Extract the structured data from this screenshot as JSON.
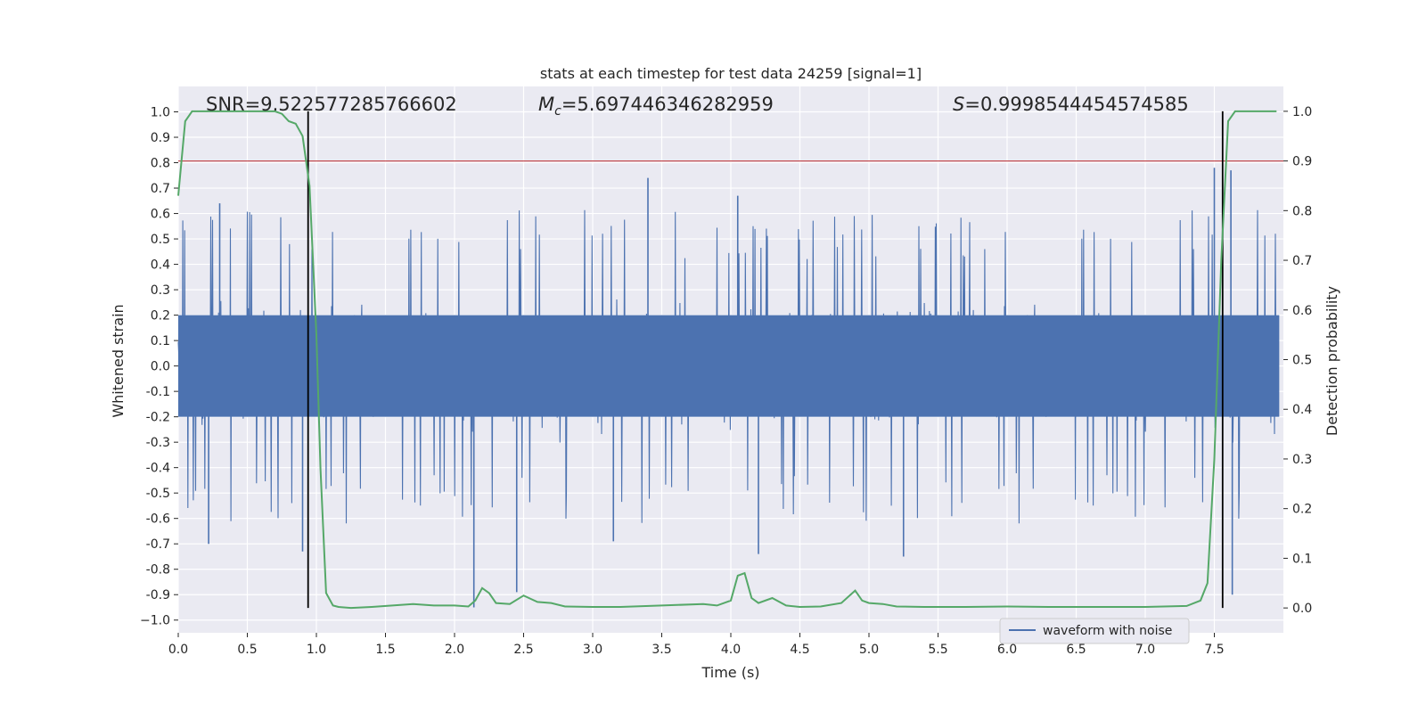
{
  "chart_data": {
    "type": "line",
    "title": "stats at each timestep for test data 24259 [signal=1]",
    "xlabel": "Time (s)",
    "ylabel": "Whitened strain",
    "y2label": "Detection probability",
    "xlim": [
      0.0,
      8.0
    ],
    "ylim": [
      -1.05,
      1.1
    ],
    "y2lim": [
      -0.05,
      1.05
    ],
    "x_ticks": [
      "0.0",
      "0.5",
      "1.0",
      "1.5",
      "2.0",
      "2.5",
      "3.0",
      "3.5",
      "4.0",
      "4.5",
      "5.0",
      "5.5",
      "6.0",
      "6.5",
      "7.0",
      "7.5"
    ],
    "y_ticks": [
      "1.0",
      "0.9",
      "0.8",
      "0.7",
      "0.6",
      "0.5",
      "0.4",
      "0.3",
      "0.2",
      "0.1",
      "0.0",
      "-0.1",
      "-0.2",
      "-0.3",
      "-0.4",
      "-0.5",
      "-0.6",
      "-0.7",
      "-0.8",
      "-0.9",
      "−1.0"
    ],
    "y2_ticks": [
      "1.0",
      "0.9",
      "0.8",
      "0.7",
      "0.6",
      "0.5",
      "0.4",
      "0.3",
      "0.2",
      "0.1",
      "0.0"
    ],
    "grid": true,
    "legend_position": "bottom-right",
    "annotations": {
      "snr": "SNR=9.522577285766602",
      "mc_symbol": "M",
      "mc_sub": "c",
      "mc_value": "=5.697446346282959",
      "s_symbol": "S",
      "s_value": "=0.9998544454574585"
    },
    "threshold": 0.9,
    "threshold_color": "#c44e52",
    "vertical_lines_x": [
      0.94,
      7.56
    ],
    "series": [
      {
        "name": "waveform with noise",
        "kind": "noise-strain",
        "color": "#4c72b0",
        "typical_range": [
          -0.4,
          0.4
        ],
        "extreme_values": [
          {
            "x": 0.22,
            "y": -0.7
          },
          {
            "x": 0.3,
            "y": 0.64
          },
          {
            "x": 0.9,
            "y": -0.73
          },
          {
            "x": 2.14,
            "y": -0.95
          },
          {
            "x": 3.4,
            "y": 0.74
          },
          {
            "x": 2.45,
            "y": -0.89
          },
          {
            "x": 3.15,
            "y": -0.69
          },
          {
            "x": 4.05,
            "y": 0.67
          },
          {
            "x": 4.2,
            "y": -0.74
          },
          {
            "x": 5.25,
            "y": -0.75
          },
          {
            "x": 7.5,
            "y": 0.78
          },
          {
            "x": 7.63,
            "y": -0.9
          },
          {
            "x": 7.62,
            "y": 0.77
          }
        ]
      },
      {
        "name": "detection probability",
        "kind": "probability",
        "color": "#55a868",
        "x": [
          0.0,
          0.05,
          0.1,
          0.15,
          0.2,
          0.3,
          0.4,
          0.5,
          0.6,
          0.7,
          0.75,
          0.8,
          0.85,
          0.9,
          0.95,
          1.0,
          1.03,
          1.07,
          1.12,
          1.16,
          1.25,
          1.4,
          1.55,
          1.7,
          1.85,
          2.0,
          2.1,
          2.15,
          2.2,
          2.25,
          2.3,
          2.4,
          2.5,
          2.6,
          2.7,
          2.8,
          3.0,
          3.2,
          3.5,
          3.8,
          3.9,
          4.0,
          4.05,
          4.1,
          4.15,
          4.2,
          4.3,
          4.4,
          4.5,
          4.65,
          4.8,
          4.9,
          4.95,
          5.0,
          5.1,
          5.2,
          5.4,
          5.7,
          6.0,
          6.3,
          6.7,
          7.0,
          7.3,
          7.4,
          7.45,
          7.5,
          7.55,
          7.6,
          7.65,
          7.7,
          7.8,
          7.95
        ],
        "y": [
          0.83,
          0.98,
          1.0,
          1.0,
          1.0,
          1.0,
          1.0,
          1.0,
          1.0,
          1.0,
          0.995,
          0.98,
          0.975,
          0.95,
          0.85,
          0.55,
          0.28,
          0.03,
          0.005,
          0.002,
          0.0,
          0.002,
          0.005,
          0.008,
          0.005,
          0.005,
          0.003,
          0.015,
          0.04,
          0.03,
          0.01,
          0.008,
          0.025,
          0.012,
          0.01,
          0.003,
          0.002,
          0.002,
          0.005,
          0.008,
          0.005,
          0.015,
          0.065,
          0.07,
          0.02,
          0.01,
          0.02,
          0.005,
          0.002,
          0.003,
          0.01,
          0.035,
          0.015,
          0.01,
          0.008,
          0.003,
          0.002,
          0.002,
          0.003,
          0.002,
          0.002,
          0.002,
          0.004,
          0.015,
          0.05,
          0.3,
          0.7,
          0.98,
          1.0,
          1.0,
          1.0,
          1.0
        ]
      }
    ]
  }
}
